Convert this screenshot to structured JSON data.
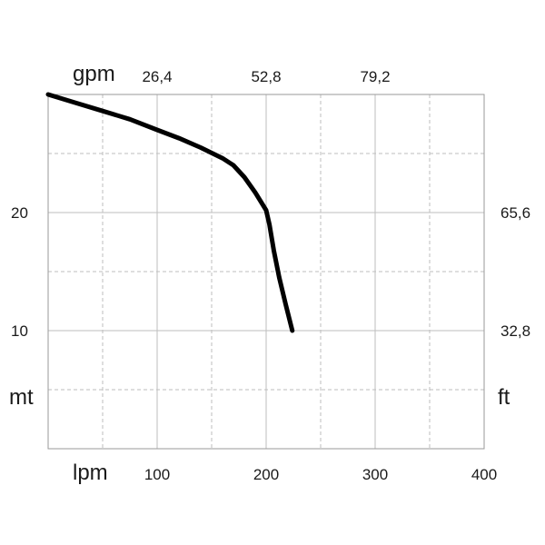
{
  "chart_data": {
    "type": "line",
    "x_unit_bottom": "lpm",
    "x_unit_top": "gpm",
    "y_unit_left": "mt",
    "y_unit_right": "ft",
    "x_ticks_bottom": [
      "100",
      "200",
      "300",
      "400"
    ],
    "x_ticks_top": [
      "26,4",
      "52,8",
      "79,2"
    ],
    "y_ticks_left": [
      "10",
      "20"
    ],
    "y_ticks_right": [
      "32,8",
      "65,6"
    ],
    "xlim": [
      0,
      400
    ],
    "ylim": [
      0,
      30
    ],
    "grid": true,
    "series": [
      {
        "color": "#000000",
        "x": [
          0,
          25,
          50,
          75,
          100,
          120,
          140,
          160,
          170,
          180,
          190,
          200,
          203,
          207,
          212,
          218,
          224
        ],
        "y": [
          30,
          29.3,
          28.6,
          27.9,
          27.0,
          26.3,
          25.5,
          24.6,
          24.0,
          23.0,
          21.7,
          20.2,
          19.0,
          16.8,
          14.5,
          12.2,
          10.0
        ]
      }
    ]
  }
}
